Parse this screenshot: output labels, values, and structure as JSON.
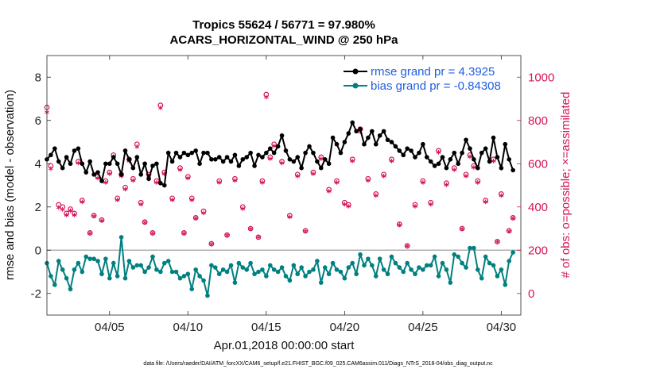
{
  "chart_data": {
    "type": "line",
    "title": "Tropics 55624 / 56771 = 97.980%",
    "subtitle": "ACARS_HORIZONTAL_WIND @ 250 hPa",
    "xlabel": "Apr.01,2018 00:00:00 start",
    "ylabel": "rmse and bias (model - observation)",
    "y2label": "# of obs: o=possible; ×=assimilated",
    "footnote": "data file: /Users/raeder/DAI/ATM_forcXX/CAM6_setup/f.e21.FHIST_BGC.f09_025.CAM6assim.011/Diags_NTrS_2018-04/obs_diag_output.nc",
    "xlim": [
      1,
      31.25
    ],
    "ylim": [
      -3,
      9
    ],
    "y2lim": [
      -100,
      1100
    ],
    "x_ticks": [
      5,
      10,
      15,
      20,
      25,
      30
    ],
    "x_tick_labels": [
      "04/05",
      "04/10",
      "04/15",
      "04/20",
      "04/25",
      "04/30"
    ],
    "y_ticks": [
      -2,
      0,
      2,
      4,
      6,
      8
    ],
    "y_tick_labels": [
      "-2",
      "0",
      "2",
      "4",
      "6",
      "8"
    ],
    "y2_ticks": [
      0,
      200,
      400,
      600,
      800,
      1000
    ],
    "y2_tick_labels": [
      "0",
      "200",
      "400",
      "600",
      "800",
      "1000"
    ],
    "zero_line": 0,
    "grid": false,
    "legend_position": "top-right",
    "colors": {
      "rmse": "#000000",
      "bias": "#008080",
      "obs": "#d4145a",
      "zero_line": "#b0b0b0",
      "legend_text": "#1f5fe0",
      "axis_right": "#d4145a"
    },
    "series": [
      {
        "name": "rmse",
        "label": "rmse grand pr = 4.3925",
        "x": [
          1.0,
          1.25,
          1.5,
          1.75,
          2.0,
          2.25,
          2.5,
          2.75,
          3.0,
          3.25,
          3.5,
          3.75,
          4.0,
          4.25,
          4.5,
          4.75,
          5.0,
          5.25,
          5.5,
          5.75,
          6.0,
          6.25,
          6.5,
          6.75,
          7.0,
          7.25,
          7.5,
          7.75,
          8.0,
          8.25,
          8.5,
          8.75,
          9.0,
          9.25,
          9.5,
          9.75,
          10.0,
          10.25,
          10.5,
          10.75,
          11.0,
          11.25,
          11.5,
          11.75,
          12.0,
          12.25,
          12.5,
          12.75,
          13.0,
          13.25,
          13.5,
          13.75,
          14.0,
          14.25,
          14.5,
          14.75,
          15.0,
          15.25,
          15.5,
          15.75,
          16.0,
          16.25,
          16.5,
          16.75,
          17.0,
          17.25,
          17.5,
          17.75,
          18.0,
          18.25,
          18.5,
          18.75,
          19.0,
          19.25,
          19.5,
          19.75,
          20.0,
          20.25,
          20.5,
          20.75,
          21.0,
          21.25,
          21.5,
          21.75,
          22.0,
          22.25,
          22.5,
          22.75,
          23.0,
          23.25,
          23.5,
          23.75,
          24.0,
          24.25,
          24.5,
          24.75,
          25.0,
          25.25,
          25.5,
          25.75,
          26.0,
          26.25,
          26.5,
          26.75,
          27.0,
          27.25,
          27.5,
          27.75,
          28.0,
          28.25,
          28.5,
          28.75,
          29.0,
          29.25,
          29.5,
          29.75,
          30.0,
          30.25,
          30.5,
          30.75
        ],
        "values": [
          4.2,
          4.4,
          4.7,
          4.1,
          3.8,
          4.3,
          4.0,
          4.6,
          4.7,
          4.0,
          3.6,
          4.1,
          3.5,
          3.6,
          3.2,
          4.0,
          4.0,
          4.3,
          4.0,
          3.5,
          4.6,
          4.2,
          3.8,
          4.3,
          3.5,
          4.0,
          3.3,
          3.9,
          4.0,
          3.1,
          3.0,
          4.5,
          4.1,
          4.5,
          4.3,
          4.5,
          4.4,
          4.5,
          4.6,
          4.0,
          4.5,
          4.5,
          4.2,
          4.2,
          4.3,
          4.1,
          4.3,
          4.1,
          4.4,
          3.9,
          4.2,
          4.3,
          4.5,
          3.9,
          4.4,
          4.3,
          4.5,
          4.7,
          4.5,
          4.8,
          5.3,
          4.6,
          4.2,
          4.1,
          4.3,
          3.8,
          4.5,
          4.8,
          4.5,
          4.1,
          3.8,
          4.2,
          4.0,
          5.2,
          4.9,
          4.5,
          5.0,
          5.4,
          5.9,
          5.5,
          5.6,
          4.9,
          5.2,
          5.5,
          4.9,
          5.3,
          5.5,
          5.1,
          5.0,
          4.8,
          4.6,
          4.4,
          4.7,
          4.6,
          4.3,
          4.5,
          4.9,
          4.3,
          4.1,
          3.9,
          4.0,
          4.3,
          3.8,
          4.2,
          4.5,
          4.0,
          4.5,
          5.1,
          4.7,
          4.2,
          3.8,
          4.5,
          4.7,
          4.1,
          5.2,
          4.3,
          3.8,
          4.9,
          4.2,
          3.7
        ]
      },
      {
        "name": "bias",
        "label": "bias grand pr = -0.84308",
        "x": [
          1.0,
          1.25,
          1.5,
          1.75,
          2.0,
          2.25,
          2.5,
          2.75,
          3.0,
          3.25,
          3.5,
          3.75,
          4.0,
          4.25,
          4.5,
          4.75,
          5.0,
          5.25,
          5.5,
          5.75,
          6.0,
          6.25,
          6.5,
          6.75,
          7.0,
          7.25,
          7.5,
          7.75,
          8.0,
          8.25,
          8.5,
          8.75,
          9.0,
          9.25,
          9.5,
          9.75,
          10.0,
          10.25,
          10.5,
          10.75,
          11.0,
          11.25,
          11.5,
          11.75,
          12.0,
          12.25,
          12.5,
          12.75,
          13.0,
          13.25,
          13.5,
          13.75,
          14.0,
          14.25,
          14.5,
          14.75,
          15.0,
          15.25,
          15.5,
          15.75,
          16.0,
          16.25,
          16.5,
          16.75,
          17.0,
          17.25,
          17.5,
          17.75,
          18.0,
          18.25,
          18.5,
          18.75,
          19.0,
          19.25,
          19.5,
          19.75,
          20.0,
          20.25,
          20.5,
          20.75,
          21.0,
          21.25,
          21.5,
          21.75,
          22.0,
          22.25,
          22.5,
          22.75,
          23.0,
          23.25,
          23.5,
          23.75,
          24.0,
          24.25,
          24.5,
          24.75,
          25.0,
          25.25,
          25.5,
          25.75,
          26.0,
          26.25,
          26.5,
          26.75,
          27.0,
          27.25,
          27.5,
          27.75,
          28.0,
          28.25,
          28.5,
          28.75,
          29.0,
          29.25,
          29.5,
          29.75,
          30.0,
          30.25,
          30.5,
          30.75
        ],
        "values": [
          -0.6,
          -1.2,
          -1.6,
          -0.5,
          -0.9,
          -1.3,
          -1.8,
          -0.9,
          -0.6,
          -1.0,
          -0.3,
          -0.4,
          -0.4,
          -0.5,
          -1.1,
          -0.4,
          -1.3,
          -0.6,
          -1.2,
          0.6,
          -1.3,
          -0.5,
          -0.8,
          -0.7,
          -0.7,
          -1.0,
          -0.8,
          -0.3,
          -0.9,
          -1.0,
          -0.6,
          -0.5,
          -1.0,
          -1.0,
          -1.3,
          -1.2,
          -1.1,
          -1.8,
          -0.9,
          -1.2,
          -1.4,
          -2.1,
          -0.7,
          -0.8,
          -1.1,
          -0.9,
          -1.0,
          -0.7,
          -1.5,
          -0.6,
          -0.8,
          -0.9,
          -0.6,
          -1.1,
          -1.0,
          -0.9,
          -1.2,
          -0.7,
          -0.9,
          -1.0,
          -0.8,
          -1.2,
          -1.4,
          -0.7,
          -1.1,
          -0.8,
          -1.2,
          -1.0,
          -0.9,
          -0.5,
          -1.5,
          -0.8,
          -1.1,
          -0.6,
          -0.9,
          -1.0,
          -1.3,
          -0.8,
          -0.6,
          -1.1,
          -0.2,
          -0.7,
          -0.4,
          -0.7,
          -1.2,
          -0.4,
          -0.9,
          -1.1,
          -0.3,
          -0.6,
          -0.8,
          -1.0,
          -0.6,
          -0.9,
          -1.1,
          -0.8,
          -0.9,
          -0.7,
          -0.7,
          -0.3,
          -1.2,
          -0.6,
          -0.9,
          -1.5,
          -0.2,
          -0.3,
          -0.6,
          -0.8,
          0.1,
          0.1,
          -0.9,
          -1.3,
          -0.3,
          -0.6,
          -0.7,
          -1.2,
          -0.9,
          -1.6,
          -0.5,
          -0.1
        ]
      }
    ],
    "obs_possible": {
      "label": "possible",
      "marker": "o",
      "x": [
        1.0,
        1.25,
        1.75,
        2.0,
        2.25,
        2.5,
        2.75,
        3.0,
        3.25,
        3.75,
        4.0,
        4.25,
        4.5,
        4.75,
        5.0,
        5.25,
        5.5,
        5.75,
        6.0,
        6.25,
        6.5,
        6.75,
        7.0,
        7.25,
        7.5,
        7.75,
        8.0,
        8.25,
        8.5,
        9.0,
        9.5,
        9.75,
        10.0,
        10.25,
        10.5,
        11.0,
        11.5,
        12.0,
        12.5,
        13.0,
        13.5,
        14.0,
        14.5,
        14.75,
        15.0,
        15.25,
        15.5,
        16.0,
        16.5,
        17.0,
        17.5,
        18.0,
        18.5,
        19.0,
        19.5,
        20.0,
        20.25,
        20.5,
        21.0,
        21.5,
        22.0,
        22.5,
        23.0,
        23.5,
        24.0,
        24.5,
        25.0,
        25.5,
        26.0,
        26.5,
        27.0,
        27.5,
        27.75,
        28.0,
        28.25,
        28.5,
        29.0,
        29.5,
        29.75,
        30.0,
        30.5,
        30.75
      ],
      "values": [
        860,
        590,
        410,
        400,
        370,
        390,
        370,
        610,
        430,
        280,
        360,
        540,
        340,
        520,
        560,
        640,
        440,
        550,
        490,
        620,
        530,
        690,
        420,
        330,
        550,
        280,
        520,
        870,
        560,
        440,
        580,
        280,
        540,
        440,
        350,
        380,
        230,
        520,
        270,
        530,
        400,
        300,
        260,
        520,
        920,
        630,
        690,
        610,
        360,
        550,
        290,
        560,
        630,
        480,
        520,
        420,
        410,
        620,
        760,
        530,
        460,
        550,
        620,
        320,
        220,
        410,
        520,
        420,
        660,
        510,
        580,
        300,
        550,
        640,
        590,
        520,
        430,
        620,
        240,
        460,
        290,
        350
      ]
    },
    "obs_assimilated": {
      "label": "assimilated",
      "marker": "×",
      "x": [
        1.0,
        1.25,
        1.75,
        2.0,
        2.25,
        2.5,
        2.75,
        3.0,
        3.25,
        3.75,
        4.0,
        4.25,
        4.5,
        4.75,
        5.0,
        5.25,
        5.5,
        5.75,
        6.0,
        6.25,
        6.5,
        6.75,
        7.0,
        7.25,
        7.5,
        7.75,
        8.0,
        8.25,
        8.5,
        9.0,
        9.5,
        9.75,
        10.0,
        10.25,
        10.5,
        11.0,
        11.5,
        12.0,
        12.5,
        13.0,
        13.5,
        14.0,
        14.5,
        14.75,
        15.0,
        15.25,
        15.5,
        16.0,
        16.5,
        17.0,
        17.5,
        18.0,
        18.5,
        19.0,
        19.5,
        20.0,
        20.25,
        20.5,
        21.0,
        21.5,
        22.0,
        22.5,
        23.0,
        23.5,
        24.0,
        24.5,
        25.0,
        25.5,
        26.0,
        26.5,
        27.0,
        27.5,
        27.75,
        28.0,
        28.25,
        28.5,
        29.0,
        29.5,
        29.75,
        30.0,
        30.5,
        30.75
      ],
      "values": [
        830,
        570,
        390,
        380,
        355,
        375,
        355,
        595,
        415,
        270,
        350,
        525,
        330,
        505,
        545,
        625,
        425,
        535,
        475,
        605,
        515,
        670,
        405,
        320,
        535,
        270,
        505,
        850,
        545,
        425,
        565,
        270,
        525,
        425,
        340,
        365,
        222,
        505,
        262,
        515,
        385,
        290,
        252,
        505,
        900,
        615,
        675,
        595,
        345,
        535,
        280,
        545,
        615,
        465,
        505,
        405,
        395,
        605,
        740,
        515,
        445,
        535,
        605,
        310,
        212,
        395,
        505,
        405,
        645,
        495,
        565,
        290,
        535,
        625,
        575,
        505,
        415,
        605,
        232,
        445,
        280,
        340
      ]
    }
  }
}
